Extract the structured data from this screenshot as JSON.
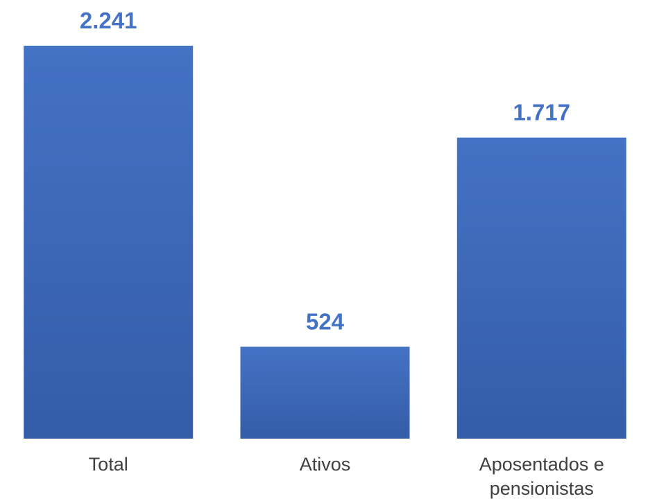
{
  "chart_data": {
    "type": "bar",
    "categories": [
      [
        "Total"
      ],
      [
        "Ativos"
      ],
      [
        "Aposentados e",
        "pensionistas"
      ]
    ],
    "values": [
      2241,
      524,
      1717
    ],
    "value_labels": [
      "2.241",
      "524",
      "1.717"
    ],
    "ylim": [
      0,
      2241
    ],
    "grid": false,
    "legend": "none",
    "colors": {
      "bar_top": "#4472C4",
      "bar_bottom": "#345DA8",
      "value_label": "#4472C4",
      "category_label": "#404040"
    }
  }
}
